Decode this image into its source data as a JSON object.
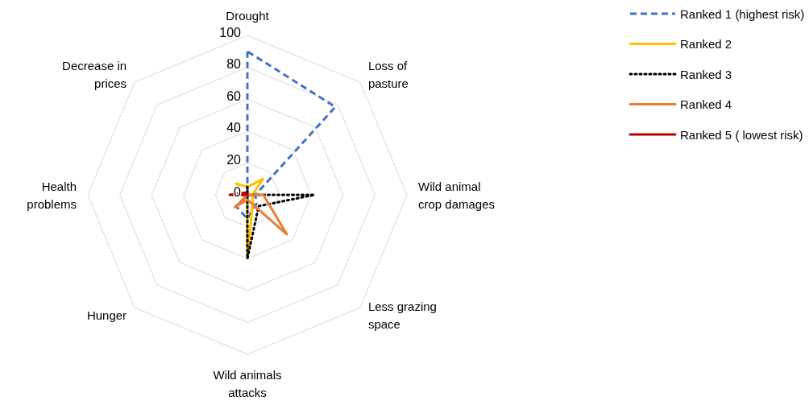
{
  "chart_data": {
    "type": "radar",
    "categories": [
      "Drought",
      "Loss of pasture",
      "Wild animal crop damages",
      "Less grazing space",
      "Wild animals attacks",
      "Hunger",
      "Health problems",
      "Decrease in prices"
    ],
    "series": [
      {
        "name": "Ranked 1 (highest risk)",
        "color": "#4472c4",
        "line_style": "dashed",
        "values": [
          90,
          78,
          5,
          8,
          15,
          10,
          0,
          0
        ]
      },
      {
        "name": "Ranked 2",
        "color": "#ffc000",
        "line_style": "solid",
        "values": [
          5,
          14,
          3,
          5,
          40,
          0,
          3,
          10
        ]
      },
      {
        "name": "Ranked 3",
        "color": "#000000",
        "line_style": "dotted",
        "values": [
          5,
          0,
          42,
          10,
          40,
          0,
          0,
          0
        ]
      },
      {
        "name": "Ranked 4",
        "color": "#ed7d31",
        "line_style": "solid",
        "values": [
          0,
          0,
          10,
          35,
          3,
          11,
          0,
          0
        ]
      },
      {
        "name": "Ranked 5 ( lowest risk)",
        "color": "#c00000",
        "line_style": "solid",
        "values": [
          0,
          0,
          0,
          0,
          0,
          0,
          11,
          2
        ]
      }
    ],
    "ylim": [
      0,
      100
    ],
    "yticks": [
      0,
      20,
      40,
      60,
      80,
      100
    ],
    "grid": true,
    "legend": "top right",
    "marker": "none"
  }
}
